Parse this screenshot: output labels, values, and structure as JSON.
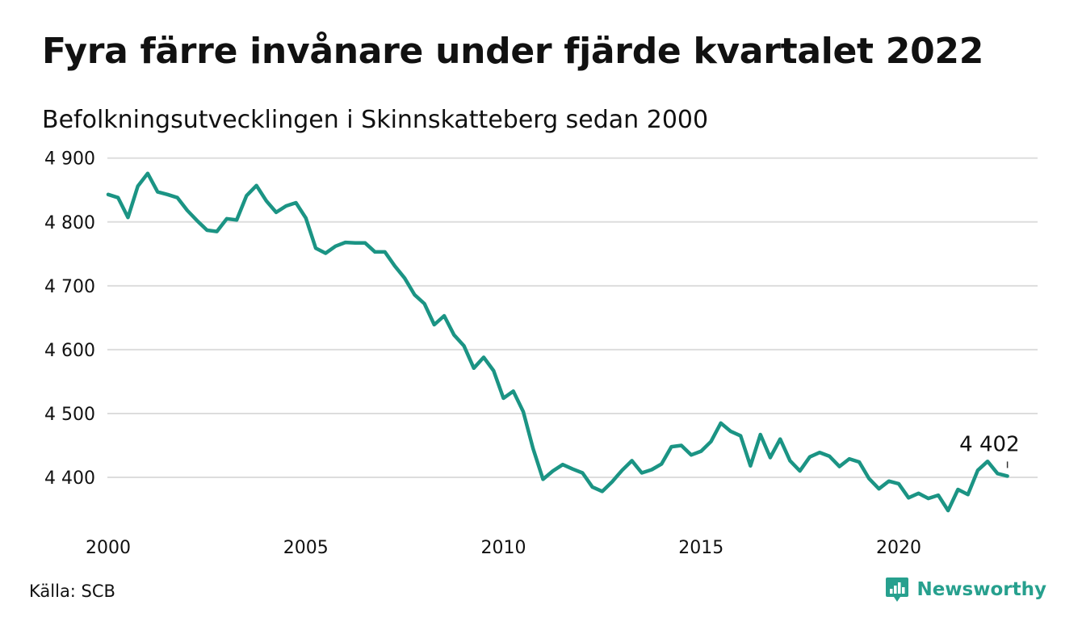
{
  "title": "Fyra färre invånare under fjärde kvartalet 2022",
  "subtitle": "Befolkningsutvecklingen i Skinnskatteberg sedan 2000",
  "source": "Källa: SCB",
  "brand": {
    "name": "Newsworthy",
    "icon": "newsworthy-logo-icon"
  },
  "colors": {
    "line": "#1b9484",
    "grid": "#dddddd",
    "brand": "#27a08e",
    "text": "#111111"
  },
  "chart_data": {
    "type": "line",
    "title": "Fyra färre invånare under fjärde kvartalet 2022",
    "subtitle": "Befolkningsutvecklingen i Skinnskatteberg sedan 2000",
    "xlabel": "",
    "ylabel": "",
    "xlim": [
      2000,
      2023.3
    ],
    "ylim": [
      4340,
      4900
    ],
    "x_ticks": [
      2000,
      2005,
      2010,
      2015,
      2020
    ],
    "x_tick_labels": [
      "2000",
      "2005",
      "2010",
      "2015",
      "2020"
    ],
    "y_ticks": [
      4400,
      4500,
      4600,
      4700,
      4800,
      4900
    ],
    "y_tick_labels": [
      "4 400",
      "4 500",
      "4 600",
      "4 700",
      "4 800",
      "4 900"
    ],
    "grid": true,
    "legend": "none",
    "series": [
      {
        "x_start": "2000 Q1",
        "step": "quarter",
        "values": [
          4843,
          4838,
          4807,
          4856,
          4876,
          4847,
          4843,
          4838,
          4818,
          4802,
          4787,
          4785,
          4805,
          4803,
          4841,
          4857,
          4833,
          4815,
          4825,
          4830,
          4806,
          4759,
          4751,
          4762,
          4768,
          4767,
          4767,
          4753,
          4753,
          4731,
          4712,
          4686,
          4672,
          4639,
          4653,
          4623,
          4606,
          4571,
          4588,
          4567,
          4524,
          4535,
          4503,
          4445,
          4397,
          4410,
          4420,
          4413,
          4407,
          4385,
          4378,
          4393,
          4411,
          4426,
          4407,
          4412,
          4421,
          4448,
          4450,
          4435,
          4441,
          4456,
          4485,
          4472,
          4465,
          4418,
          4467,
          4431,
          4460,
          4426,
          4410,
          4432,
          4439,
          4433,
          4417,
          4429,
          4424,
          4398,
          4382,
          4394,
          4390,
          4368,
          4375,
          4367,
          4372,
          4348,
          4381,
          4373,
          4411,
          4425,
          4406,
          4402
        ]
      }
    ],
    "annotations": [
      {
        "label": "4 402",
        "period": "2022 Q4",
        "value": 4402
      }
    ]
  }
}
